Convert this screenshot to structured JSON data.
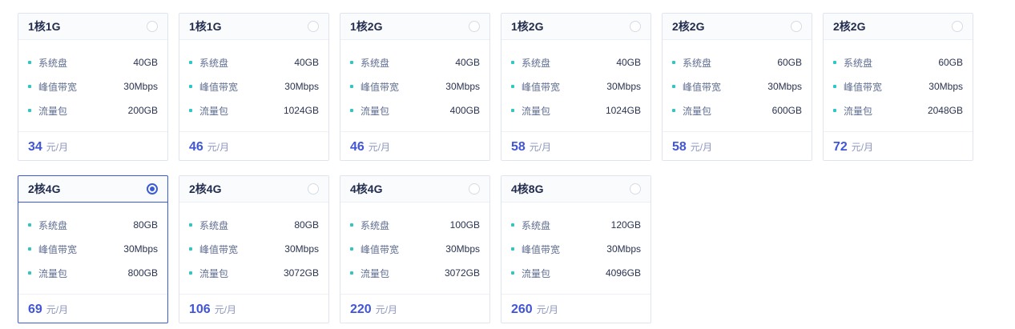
{
  "page": {
    "background": "#ffffff",
    "accent_color": "#3b5bd9",
    "bullet_color": "#2fc6c6",
    "price_color": "#4156d6",
    "selected_plan_index": 6
  },
  "labels": {
    "disk": "系统盘",
    "bandwidth": "峰值带宽",
    "traffic": "流量包",
    "price_unit": "元/月"
  },
  "plans": [
    {
      "name": "1核1G",
      "disk": "40GB",
      "bandwidth": "30Mbps",
      "traffic": "200GB",
      "price": "34",
      "selected": false
    },
    {
      "name": "1核1G",
      "disk": "40GB",
      "bandwidth": "30Mbps",
      "traffic": "1024GB",
      "price": "46",
      "selected": false
    },
    {
      "name": "1核2G",
      "disk": "40GB",
      "bandwidth": "30Mbps",
      "traffic": "400GB",
      "price": "46",
      "selected": false
    },
    {
      "name": "1核2G",
      "disk": "40GB",
      "bandwidth": "30Mbps",
      "traffic": "1024GB",
      "price": "58",
      "selected": false
    },
    {
      "name": "2核2G",
      "disk": "60GB",
      "bandwidth": "30Mbps",
      "traffic": "600GB",
      "price": "58",
      "selected": false
    },
    {
      "name": "2核2G",
      "disk": "60GB",
      "bandwidth": "30Mbps",
      "traffic": "2048GB",
      "price": "72",
      "selected": false
    },
    {
      "name": "2核4G",
      "disk": "80GB",
      "bandwidth": "30Mbps",
      "traffic": "800GB",
      "price": "69",
      "selected": true
    },
    {
      "name": "2核4G",
      "disk": "80GB",
      "bandwidth": "30Mbps",
      "traffic": "3072GB",
      "price": "106",
      "selected": false
    },
    {
      "name": "4核4G",
      "disk": "100GB",
      "bandwidth": "30Mbps",
      "traffic": "3072GB",
      "price": "220",
      "selected": false
    },
    {
      "name": "4核8G",
      "disk": "120GB",
      "bandwidth": "30Mbps",
      "traffic": "4096GB",
      "price": "260",
      "selected": false
    }
  ]
}
